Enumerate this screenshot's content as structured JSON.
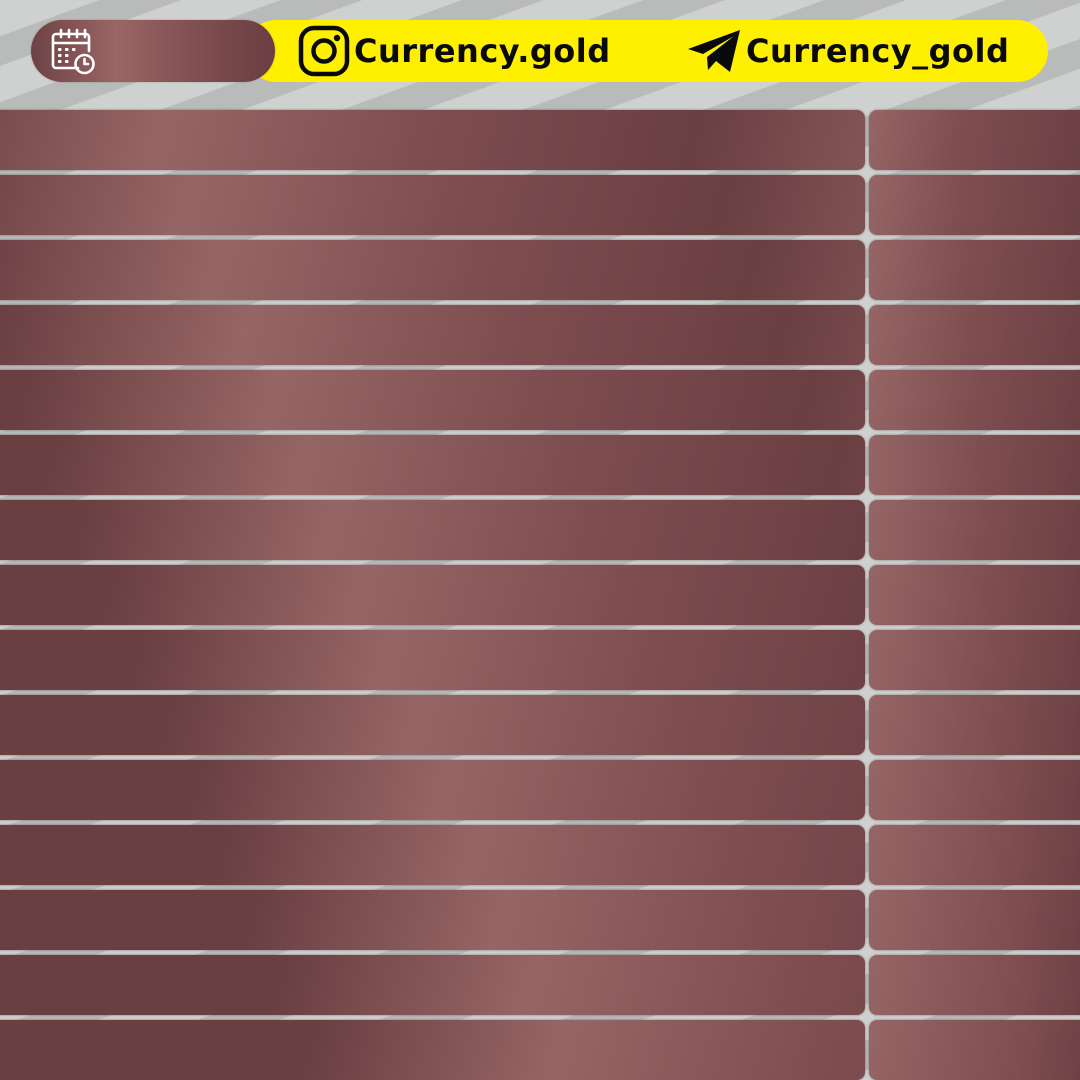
{
  "header": {
    "date_icon": "calendar-clock-icon",
    "instagram": {
      "icon": "instagram-icon",
      "handle": "Currency.gold"
    },
    "telegram": {
      "icon": "telegram-icon",
      "handle": "Currency_gold"
    }
  },
  "colors": {
    "accent_yellow": "#fff000",
    "row_dark": "#6a3f42",
    "row_light": "#966565",
    "background_light": "#cfd0d0",
    "background_dark": "#b9baba"
  },
  "rows": [
    {
      "main": "",
      "side": ""
    },
    {
      "main": "",
      "side": ""
    },
    {
      "main": "",
      "side": ""
    },
    {
      "main": "",
      "side": ""
    },
    {
      "main": "",
      "side": ""
    },
    {
      "main": "",
      "side": ""
    },
    {
      "main": "",
      "side": ""
    },
    {
      "main": "",
      "side": ""
    },
    {
      "main": "",
      "side": ""
    },
    {
      "main": "",
      "side": ""
    },
    {
      "main": "",
      "side": ""
    },
    {
      "main": "",
      "side": ""
    },
    {
      "main": "",
      "side": ""
    },
    {
      "main": "",
      "side": ""
    },
    {
      "main": "",
      "side": ""
    }
  ]
}
